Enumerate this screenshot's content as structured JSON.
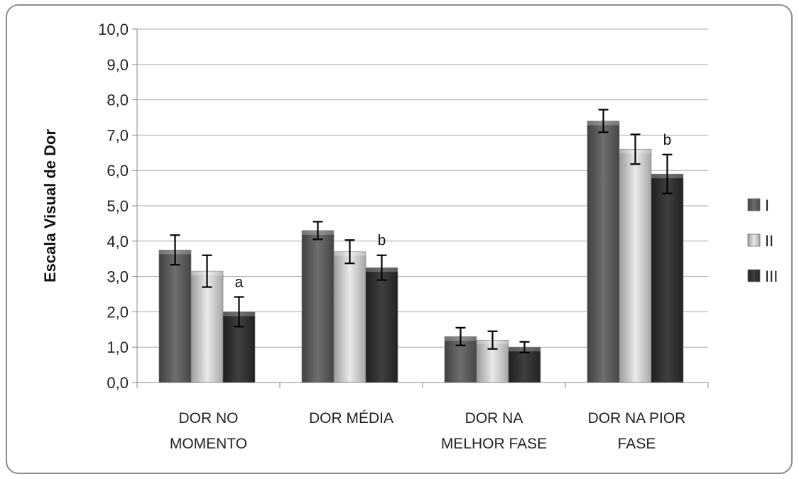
{
  "chart_data": {
    "type": "bar",
    "title": "",
    "xlabel": "",
    "ylabel": "Escala Visual de Dor",
    "ylim": [
      0,
      10
    ],
    "yticks": [
      "0,0",
      "1,0",
      "2,0",
      "3,0",
      "4,0",
      "5,0",
      "6,0",
      "7,0",
      "8,0",
      "9,0",
      "10,0"
    ],
    "grid": true,
    "legend_position": "right",
    "categories": [
      [
        "DOR NO",
        "MOMENTO"
      ],
      [
        "DOR MÉDIA"
      ],
      [
        "DOR NA",
        "MELHOR FASE"
      ],
      [
        "DOR NA PIOR",
        "FASE"
      ]
    ],
    "series": [
      {
        "name": "I",
        "color": "#5a5a5a",
        "values": [
          3.75,
          4.3,
          1.3,
          7.4
        ],
        "errors": [
          0.42,
          0.25,
          0.25,
          0.32
        ]
      },
      {
        "name": "II",
        "color": "#d6d6d6",
        "values": [
          3.15,
          3.7,
          1.2,
          6.6
        ],
        "errors": [
          0.45,
          0.33,
          0.25,
          0.42
        ]
      },
      {
        "name": "III",
        "color": "#2b2b2b",
        "values": [
          2.0,
          3.25,
          1.0,
          5.9
        ],
        "errors": [
          0.42,
          0.35,
          0.15,
          0.55
        ]
      }
    ],
    "annotations": [
      {
        "category": 0,
        "series": 2,
        "text": "a"
      },
      {
        "category": 1,
        "series": 2,
        "text": "b"
      },
      {
        "category": 3,
        "series": 2,
        "text": "b"
      }
    ]
  }
}
